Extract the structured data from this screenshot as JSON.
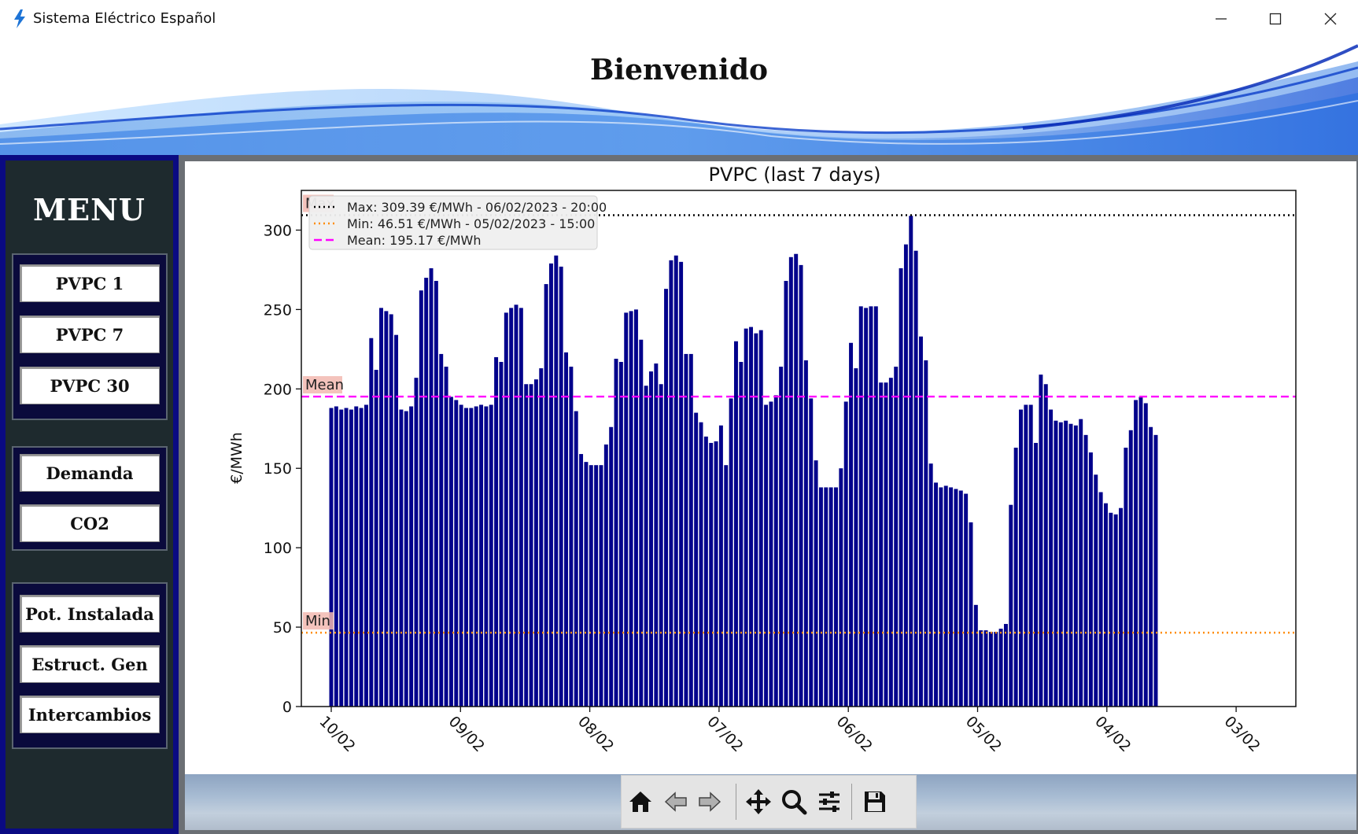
{
  "window": {
    "title": "Sistema Eléctrico Español",
    "accent": "#1e74d6"
  },
  "header": {
    "welcome": "Bienvenido"
  },
  "sidebar": {
    "title": "MENU",
    "groups": [
      {
        "items": [
          {
            "label": "PVPC 1"
          },
          {
            "label": "PVPC 7"
          },
          {
            "label": "PVPC 30"
          }
        ]
      },
      {
        "items": [
          {
            "label": "Demanda"
          },
          {
            "label": "CO2"
          }
        ]
      },
      {
        "items": [
          {
            "label": "Pot. Instalada"
          },
          {
            "label": "Estruct. Gen"
          },
          {
            "label": "Intercambios"
          }
        ]
      }
    ]
  },
  "toolbar": {
    "icons": [
      "home-icon",
      "back-arrow-icon",
      "forward-arrow-icon",
      "pan-icon",
      "zoom-icon",
      "configure-subplots-icon",
      "save-icon"
    ]
  },
  "chart_data": {
    "type": "bar",
    "title": "PVPC (last 7 days)",
    "xlabel": "",
    "ylabel": "€/MWh",
    "ylim": [
      0,
      325
    ],
    "x_tick_labels": [
      "10/02",
      "09/02",
      "08/02",
      "07/02",
      "06/02",
      "05/02",
      "04/02",
      "03/02"
    ],
    "y_ticks": [
      0,
      50,
      100,
      150,
      200,
      250,
      300
    ],
    "bar_color": "#00008b",
    "x_order": "descending (newest hour on the left)",
    "hours": 168,
    "values": [
      188,
      189,
      187,
      188,
      187,
      189,
      188,
      190,
      232,
      212,
      251,
      249,
      247,
      234,
      187,
      186,
      189,
      207,
      262,
      270,
      276,
      268,
      222,
      214,
      195,
      193,
      190,
      188,
      188,
      189,
      190,
      189,
      190,
      220,
      217,
      248,
      251,
      253,
      251,
      203,
      203,
      206,
      213,
      266,
      279,
      284,
      277,
      223,
      214,
      186,
      159,
      154,
      152,
      152,
      152,
      165,
      176,
      219,
      217,
      248,
      249,
      250,
      231,
      202,
      211,
      216,
      203,
      263,
      281,
      284,
      280,
      222,
      222,
      185,
      179,
      170,
      166,
      167,
      177,
      152,
      194,
      230,
      217,
      238,
      239,
      235,
      237,
      190,
      192,
      196,
      214,
      268,
      283,
      285,
      278,
      218,
      194,
      155,
      138,
      138,
      138,
      138,
      150,
      192,
      229,
      213,
      252,
      251,
      252,
      252,
      204,
      204,
      207,
      214,
      276,
      291,
      309,
      287,
      233,
      218,
      153,
      141,
      138,
      139,
      138,
      137,
      136,
      134,
      116,
      64,
      48,
      48,
      47,
      47,
      49,
      52,
      127,
      163,
      187,
      190,
      190,
      166,
      209,
      203,
      187,
      180,
      179,
      180,
      178,
      177,
      181,
      171,
      160,
      146,
      135,
      128,
      122,
      121,
      125,
      163,
      174,
      193,
      195,
      191,
      176,
      171
    ],
    "reference_lines": [
      {
        "name": "Max",
        "value": 309.39,
        "style": "dotted",
        "color": "#000000",
        "legend": "Max: 309.39 €/MWh - 06/02/2023 - 20:00"
      },
      {
        "name": "Min",
        "value": 46.51,
        "style": "dotted",
        "color": "#ff8c00",
        "legend": "Min: 46.51 €/MWh - 05/02/2023 - 15:00"
      },
      {
        "name": "Mean",
        "value": 195.17,
        "style": "dashed",
        "color": "#ff00ff",
        "legend": "Mean: 195.17 €/MWh"
      }
    ],
    "line_labels": [
      "Max",
      "Mean",
      "Min"
    ],
    "legend_position": "top-left",
    "grid": false
  }
}
